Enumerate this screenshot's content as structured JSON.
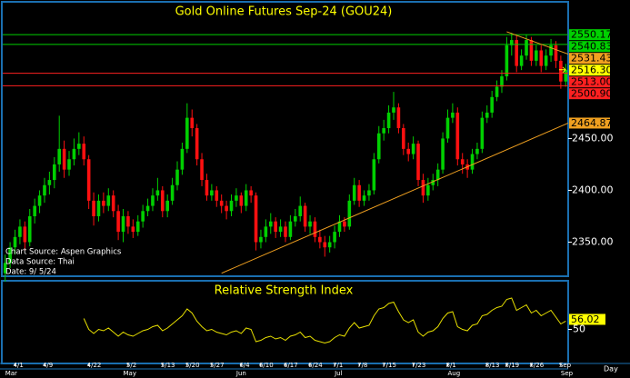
{
  "chart_data": [
    {
      "type": "candlestick",
      "title": "Gold Online Futures Sep-24 (GOU24)",
      "annotations": [
        "Chart Source: Aspen Graphics",
        "Data Source: Thai",
        "Date: 9/ 5/24"
      ],
      "x_label": "Day",
      "categories": [
        null,
        null,
        "4/1",
        null,
        null,
        null,
        null,
        null,
        "4/9",
        null,
        null,
        null,
        null,
        null,
        null,
        null,
        null,
        "4/22",
        null,
        null,
        null,
        null,
        null,
        null,
        null,
        "5/2",
        null,
        null,
        null,
        null,
        null,
        null,
        "5/13",
        null,
        null,
        null,
        null,
        "5/20",
        null,
        null,
        null,
        null,
        "5/27",
        null,
        null,
        null,
        null,
        null,
        "6/4",
        null,
        null,
        null,
        "6/10",
        null,
        null,
        null,
        null,
        "6/17",
        null,
        null,
        null,
        null,
        "6/24",
        null,
        null,
        null,
        null,
        "7/1",
        null,
        null,
        null,
        null,
        "7/8",
        null,
        null,
        null,
        null,
        "7/15",
        null,
        null,
        null,
        null,
        null,
        "7/23",
        null,
        null,
        null,
        null,
        null,
        null,
        "8/1",
        null,
        null,
        null,
        null,
        null,
        null,
        null,
        "8/13",
        null,
        null,
        null,
        "8/19",
        null,
        null,
        null,
        null,
        "8/26",
        null,
        null,
        null,
        null,
        null,
        "Sep",
        null
      ],
      "months": [
        "Mar",
        null,
        null,
        null,
        null,
        null,
        null,
        null,
        null,
        null,
        null,
        null,
        null,
        null,
        null,
        null,
        null,
        null,
        null,
        null,
        null,
        null,
        null,
        null,
        "May",
        null,
        null,
        null,
        null,
        null,
        null,
        null,
        null,
        null,
        null,
        null,
        null,
        null,
        null,
        null,
        null,
        null,
        null,
        null,
        null,
        null,
        null,
        "Jun",
        null,
        null,
        null,
        null,
        null,
        null,
        null,
        null,
        null,
        null,
        null,
        null,
        null,
        null,
        null,
        null,
        null,
        null,
        null,
        "Jul",
        null,
        null,
        null,
        null,
        null,
        null,
        null,
        null,
        null,
        null,
        null,
        null,
        null,
        null,
        null,
        null,
        null,
        null,
        null,
        null,
        null,
        null,
        "Aug",
        null,
        null,
        null,
        null,
        null,
        null,
        null,
        null,
        null,
        null,
        null,
        null,
        null,
        null,
        null,
        null,
        null,
        null,
        null,
        null,
        null,
        null,
        "Sep",
        null
      ],
      "up_color": "#00d000",
      "down_color": "#ff1010",
      "series": [
        {
          "values": [
            [
              2320,
              2338,
              2312,
              2330
            ],
            [
              2330,
              2350,
              2325,
              2345
            ],
            [
              2345,
              2362,
              2338,
              2355
            ],
            [
              2355,
              2372,
              2348,
              2365
            ],
            [
              2365,
              2370,
              2342,
              2350
            ],
            [
              2350,
              2382,
              2346,
              2375
            ],
            [
              2375,
              2392,
              2368,
              2385
            ],
            [
              2385,
              2400,
              2378,
              2395
            ],
            [
              2395,
              2412,
              2388,
              2405
            ],
            [
              2405,
              2418,
              2396,
              2410
            ],
            [
              2410,
              2432,
              2402,
              2425
            ],
            [
              2425,
              2472,
              2418,
              2440
            ],
            [
              2440,
              2448,
              2412,
              2420
            ],
            [
              2420,
              2438,
              2414,
              2430
            ],
            [
              2430,
              2450,
              2424,
              2440
            ],
            [
              2440,
              2456,
              2434,
              2445
            ],
            [
              2445,
              2452,
              2424,
              2430
            ],
            [
              2430,
              2434,
              2382,
              2390
            ],
            [
              2390,
              2398,
              2366,
              2375
            ],
            [
              2375,
              2396,
              2370,
              2390
            ],
            [
              2390,
              2398,
              2378,
              2385
            ],
            [
              2385,
              2402,
              2380,
              2395
            ],
            [
              2395,
              2400,
              2374,
              2380
            ],
            [
              2380,
              2386,
              2352,
              2360
            ],
            [
              2360,
              2382,
              2350,
              2375
            ],
            [
              2375,
              2380,
              2358,
              2365
            ],
            [
              2365,
              2372,
              2354,
              2360
            ],
            [
              2360,
              2376,
              2356,
              2370
            ],
            [
              2370,
              2386,
              2364,
              2380
            ],
            [
              2380,
              2392,
              2375,
              2385
            ],
            [
              2385,
              2402,
              2380,
              2395
            ],
            [
              2395,
              2412,
              2390,
              2400
            ],
            [
              2400,
              2404,
              2374,
              2380
            ],
            [
              2380,
              2396,
              2374,
              2390
            ],
            [
              2390,
              2412,
              2386,
              2405
            ],
            [
              2405,
              2428,
              2400,
              2420
            ],
            [
              2420,
              2446,
              2415,
              2440
            ],
            [
              2440,
              2484,
              2436,
              2470
            ],
            [
              2470,
              2478,
              2452,
              2460
            ],
            [
              2460,
              2464,
              2424,
              2430
            ],
            [
              2430,
              2436,
              2404,
              2410
            ],
            [
              2410,
              2416,
              2390,
              2395
            ],
            [
              2395,
              2406,
              2390,
              2400
            ],
            [
              2400,
              2404,
              2384,
              2390
            ],
            [
              2390,
              2396,
              2378,
              2385
            ],
            [
              2385,
              2390,
              2372,
              2380
            ],
            [
              2380,
              2396,
              2375,
              2390
            ],
            [
              2390,
              2402,
              2384,
              2395
            ],
            [
              2395,
              2398,
              2378,
              2385
            ],
            [
              2385,
              2406,
              2380,
              2400
            ],
            [
              2400,
              2404,
              2388,
              2395
            ],
            [
              2395,
              2398,
              2342,
              2350
            ],
            [
              2350,
              2362,
              2344,
              2355
            ],
            [
              2355,
              2372,
              2350,
              2365
            ],
            [
              2365,
              2378,
              2358,
              2370
            ],
            [
              2370,
              2374,
              2354,
              2360
            ],
            [
              2360,
              2372,
              2355,
              2365
            ],
            [
              2365,
              2370,
              2350,
              2355
            ],
            [
              2355,
              2376,
              2352,
              2370
            ],
            [
              2370,
              2382,
              2365,
              2375
            ],
            [
              2375,
              2394,
              2370,
              2385
            ],
            [
              2385,
              2388,
              2360,
              2365
            ],
            [
              2365,
              2376,
              2358,
              2370
            ],
            [
              2370,
              2374,
              2350,
              2355
            ],
            [
              2355,
              2362,
              2344,
              2350
            ],
            [
              2350,
              2356,
              2336,
              2345
            ],
            [
              2345,
              2356,
              2340,
              2350
            ],
            [
              2350,
              2366,
              2344,
              2360
            ],
            [
              2360,
              2376,
              2355,
              2370
            ],
            [
              2370,
              2374,
              2360,
              2365
            ],
            [
              2365,
              2396,
              2362,
              2390
            ],
            [
              2390,
              2412,
              2386,
              2405
            ],
            [
              2405,
              2410,
              2384,
              2390
            ],
            [
              2390,
              2400,
              2385,
              2395
            ],
            [
              2395,
              2406,
              2390,
              2400
            ],
            [
              2400,
              2436,
              2396,
              2430
            ],
            [
              2430,
              2462,
              2426,
              2455
            ],
            [
              2455,
              2468,
              2448,
              2460
            ],
            [
              2460,
              2482,
              2455,
              2475
            ],
            [
              2475,
              2495,
              2468,
              2480
            ],
            [
              2480,
              2484,
              2455,
              2460
            ],
            [
              2460,
              2464,
              2434,
              2440
            ],
            [
              2440,
              2446,
              2428,
              2435
            ],
            [
              2435,
              2452,
              2430,
              2445
            ],
            [
              2445,
              2448,
              2404,
              2410
            ],
            [
              2410,
              2416,
              2388,
              2395
            ],
            [
              2395,
              2412,
              2390,
              2405
            ],
            [
              2405,
              2416,
              2400,
              2410
            ],
            [
              2410,
              2426,
              2404,
              2420
            ],
            [
              2420,
              2456,
              2416,
              2450
            ],
            [
              2450,
              2478,
              2446,
              2470
            ],
            [
              2470,
              2484,
              2465,
              2475
            ],
            [
              2475,
              2480,
              2424,
              2430
            ],
            [
              2430,
              2436,
              2416,
              2425
            ],
            [
              2425,
              2430,
              2412,
              2420
            ],
            [
              2420,
              2440,
              2416,
              2435
            ],
            [
              2435,
              2446,
              2430,
              2440
            ],
            [
              2440,
              2476,
              2436,
              2470
            ],
            [
              2470,
              2482,
              2465,
              2475
            ],
            [
              2475,
              2496,
              2470,
              2490
            ],
            [
              2490,
              2506,
              2486,
              2500
            ],
            [
              2500,
              2516,
              2494,
              2510
            ],
            [
              2510,
              2548,
              2506,
              2540
            ],
            [
              2540,
              2552,
              2530,
              2545
            ],
            [
              2545,
              2550,
              2514,
              2520
            ],
            [
              2520,
              2536,
              2516,
              2530
            ],
            [
              2530,
              2550,
              2526,
              2545
            ],
            [
              2545,
              2548,
              2520,
              2525
            ],
            [
              2525,
              2540,
              2520,
              2535
            ],
            [
              2535,
              2540,
              2514,
              2520
            ],
            [
              2520,
              2536,
              2516,
              2530
            ],
            [
              2530,
              2546,
              2524,
              2540
            ],
            [
              2540,
              2544,
              2518,
              2525
            ],
            [
              2525,
              2530,
              2498,
              2505
            ],
            [
              2505,
              2522,
              2500,
              2516.3
            ]
          ]
        }
      ],
      "ylim": [
        2318,
        2581
      ],
      "yticks": [
        {
          "value": 2350,
          "label": "2350.00"
        },
        {
          "value": 2400,
          "label": "2400.00"
        },
        {
          "value": 2450,
          "label": "2450.00"
        }
      ],
      "levels": [
        {
          "value": 2550.17,
          "color": "#00d000",
          "line": true
        },
        {
          "value": 2540.83,
          "color": "#00d000",
          "line": true
        },
        {
          "value": 2516.3,
          "label": "2516.30",
          "color": "#ffff00",
          "line": false
        },
        {
          "value": 2513,
          "label": "2513.00",
          "color": "#ff2020",
          "line": true
        },
        {
          "value": 2500.9,
          "label": "2500.90",
          "color": "#ff2020",
          "line": true
        }
      ],
      "trendlines": [
        {
          "from": [
            102,
            2553
          ],
          "value": 2531.43,
          "color": "#f0a020"
        },
        {
          "from": [
            44,
            2320
          ],
          "value": 2464.87,
          "color": "#f0a020"
        }
      ]
    },
    {
      "type": "line",
      "title": "Relative Strength Index",
      "color": "#e8e000",
      "values": [
        null,
        null,
        null,
        null,
        null,
        null,
        null,
        null,
        null,
        null,
        null,
        null,
        null,
        null,
        null,
        null,
        58,
        50,
        47,
        50,
        49,
        51,
        48,
        45,
        48,
        46,
        45,
        47,
        49,
        50,
        52,
        53,
        49,
        51,
        54,
        57,
        60,
        65,
        62,
        56,
        52,
        49,
        50,
        48,
        47,
        46,
        48,
        49,
        47,
        51,
        50,
        41,
        42,
        44,
        45,
        43,
        44,
        42,
        45,
        46,
        48,
        44,
        45,
        42,
        41,
        40,
        41,
        44,
        46,
        45,
        51,
        55,
        51,
        52,
        53,
        60,
        65,
        66,
        69,
        70,
        63,
        57,
        55,
        57,
        48,
        45,
        48,
        49,
        52,
        58,
        62,
        63,
        52,
        50,
        49,
        53,
        54,
        60,
        61,
        64,
        66,
        67,
        72,
        73,
        64,
        66,
        68,
        62,
        64,
        60,
        62,
        64,
        59,
        54,
        56.02
      ],
      "ylim": [
        25,
        85
      ],
      "yticks": [
        50
      ],
      "last": {
        "value": 56.02,
        "color": "#ffff00"
      }
    }
  ]
}
